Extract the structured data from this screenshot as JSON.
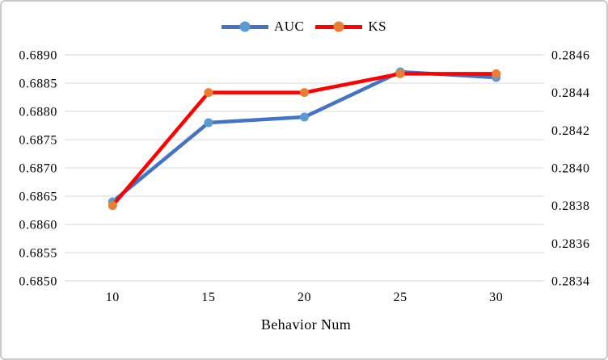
{
  "chart_data": {
    "type": "line",
    "title": "",
    "xlabel": "Behavior Num",
    "categories": [
      "10",
      "15",
      "20",
      "25",
      "30"
    ],
    "series": [
      {
        "name": "AUC",
        "axis": "left",
        "values": [
          0.6864,
          0.6878,
          0.6879,
          0.6887,
          0.6886
        ],
        "line_color": "#4472C4",
        "marker_color": "#5B9BD5"
      },
      {
        "name": "KS",
        "axis": "right",
        "values": [
          0.2838,
          0.2844,
          0.2844,
          0.2845,
          0.2845
        ],
        "line_color": "#FF0000",
        "marker_color": "#ED7D31"
      }
    ],
    "left_axis": {
      "min": 0.685,
      "max": 0.689,
      "step": 0.0005,
      "ticks": [
        "0.6890",
        "0.6885",
        "0.6880",
        "0.6875",
        "0.6870",
        "0.6865",
        "0.6860",
        "0.6855",
        "0.6850"
      ]
    },
    "right_axis": {
      "min": 0.2834,
      "max": 0.2846,
      "step": 0.0002,
      "ticks": [
        "0.2846",
        "0.2844",
        "0.2842",
        "0.2840",
        "0.2838",
        "0.2836",
        "0.2834"
      ]
    },
    "legend": [
      "AUC",
      "KS"
    ],
    "legend_position": "top-center",
    "grid": true,
    "gridline_color": "#D9D9D9",
    "text_color": "#000000"
  }
}
